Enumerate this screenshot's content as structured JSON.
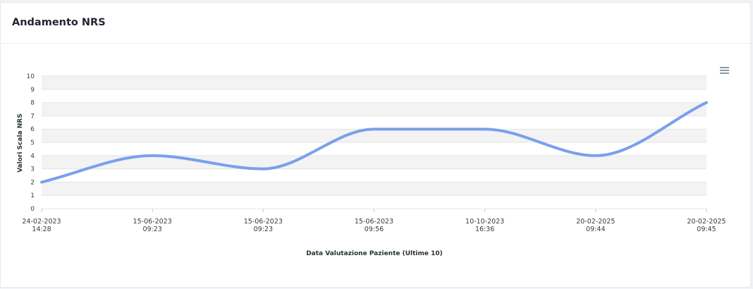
{
  "card": {
    "title": "Andamento NRS"
  },
  "toolbar": {
    "menu_icon": "hamburger-menu-icon"
  },
  "colors": {
    "line": "#7b9fec",
    "grid_band": "#f3f3f3",
    "grid_line": "#e5e5e5"
  },
  "chart_data": {
    "type": "line",
    "curve": "smooth",
    "xlabel": "Data Valutazione Paziente (Ultime 10)",
    "ylabel": "Valori Scala NRS",
    "ylim": [
      0,
      10
    ],
    "yticks": [
      0,
      1,
      2,
      3,
      4,
      5,
      6,
      7,
      8,
      9,
      10
    ],
    "grid": true,
    "categories": [
      [
        "24-02-2023",
        "14:28"
      ],
      [
        "15-06-2023",
        "09:23"
      ],
      [
        "15-06-2023",
        "09:23"
      ],
      [
        "15-06-2023",
        "09:56"
      ],
      [
        "10-10-2023",
        "16:36"
      ],
      [
        "20-02-2025",
        "09:44"
      ],
      [
        "20-02-2025",
        "09:45"
      ]
    ],
    "series": [
      {
        "values": [
          2,
          4,
          3,
          6,
          6,
          4,
          8
        ]
      }
    ]
  }
}
